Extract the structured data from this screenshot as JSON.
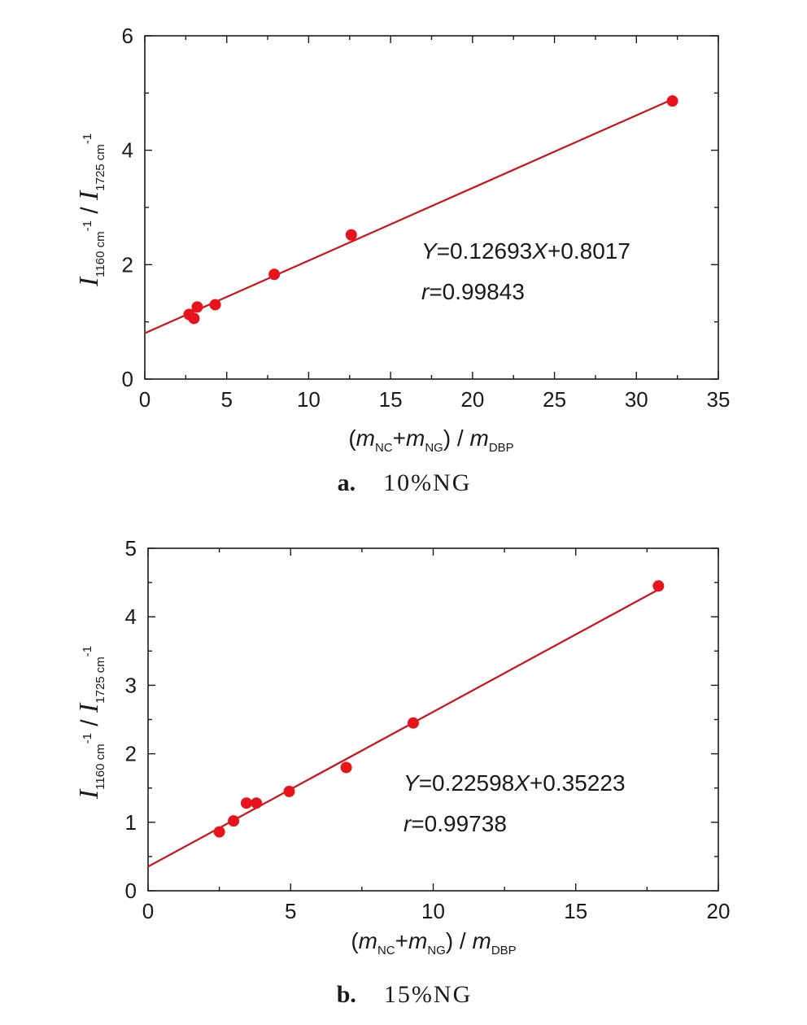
{
  "chart_data": [
    {
      "type": "scatter",
      "panel_label": "a.",
      "caption": "10%NG",
      "xlim": [
        0,
        35
      ],
      "ylim": [
        0,
        6
      ],
      "xticks": [
        0,
        5,
        10,
        15,
        20,
        25,
        30,
        35
      ],
      "yticks": [
        0,
        2,
        4,
        6
      ],
      "xticks_minor": [
        2.5,
        7.5,
        12.5,
        17.5,
        22.5,
        27.5,
        32.5
      ],
      "yticks_minor": [
        1,
        3,
        5
      ],
      "xlabel": {
        "open": "(",
        "m1": "m",
        "sub1": "NC",
        "plus": "+",
        "m2": "m",
        "sub2": "NG",
        "close": ") / ",
        "m3": "m",
        "sub3": "DBP"
      },
      "ylabel": {
        "i1": "I",
        "sub1": "1160 cm",
        "sup1": "-1",
        "slash": " / ",
        "i2": "I",
        "sub2": "1725 cm",
        "sup2": "-1"
      },
      "series": [
        {
          "x": [
            2.7,
            3.0,
            3.2,
            4.3,
            7.9,
            12.6,
            32.2
          ],
          "y": [
            1.13,
            1.06,
            1.26,
            1.3,
            1.83,
            2.52,
            4.86
          ],
          "color": "#e8141c"
        }
      ],
      "fit": {
        "slope": 0.12693,
        "intercept": 0.8017,
        "x_range": [
          0,
          32.2
        ],
        "color": "#cc1219"
      },
      "annotation": {
        "y_var": "Y",
        "eq_mid": "=0.12693",
        "x_var": "X",
        "eq_end": "+0.8017",
        "r_var": "r",
        "r_val": "=0.99843"
      }
    },
    {
      "type": "scatter",
      "panel_label": "b.",
      "caption": "15%NG",
      "xlim": [
        0,
        20
      ],
      "ylim": [
        0,
        5
      ],
      "xticks": [
        0,
        5,
        10,
        15,
        20
      ],
      "yticks": [
        0,
        1,
        2,
        3,
        4,
        5
      ],
      "xticks_minor": [
        2.5,
        7.5,
        12.5,
        17.5
      ],
      "yticks_minor": [
        0.5,
        1.5,
        2.5,
        3.5,
        4.5
      ],
      "xlabel": {
        "open": "(",
        "m1": "m",
        "sub1": "NC",
        "plus": "+",
        "m2": "m",
        "sub2": "NG",
        "close": ") / ",
        "m3": "m",
        "sub3": "DBP"
      },
      "ylabel": {
        "i1": "I",
        "sub1": "1160 cm",
        "sup1": "-1",
        "slash": " / ",
        "i2": "I",
        "sub2": "1725 cm",
        "sup2": "-1"
      },
      "series": [
        {
          "x": [
            2.5,
            3.0,
            3.45,
            3.8,
            4.95,
            6.95,
            9.3,
            17.9
          ],
          "y": [
            0.86,
            1.02,
            1.28,
            1.28,
            1.45,
            1.8,
            2.45,
            4.45
          ],
          "color": "#e8141c"
        }
      ],
      "fit": {
        "slope": 0.22598,
        "intercept": 0.35223,
        "x_range": [
          0,
          17.9
        ],
        "color": "#cc1219"
      },
      "annotation": {
        "y_var": "Y",
        "eq_mid": "=0.22598",
        "x_var": "X",
        "eq_end": "+0.35223",
        "r_var": "r",
        "r_val": "=0.99738"
      }
    }
  ]
}
